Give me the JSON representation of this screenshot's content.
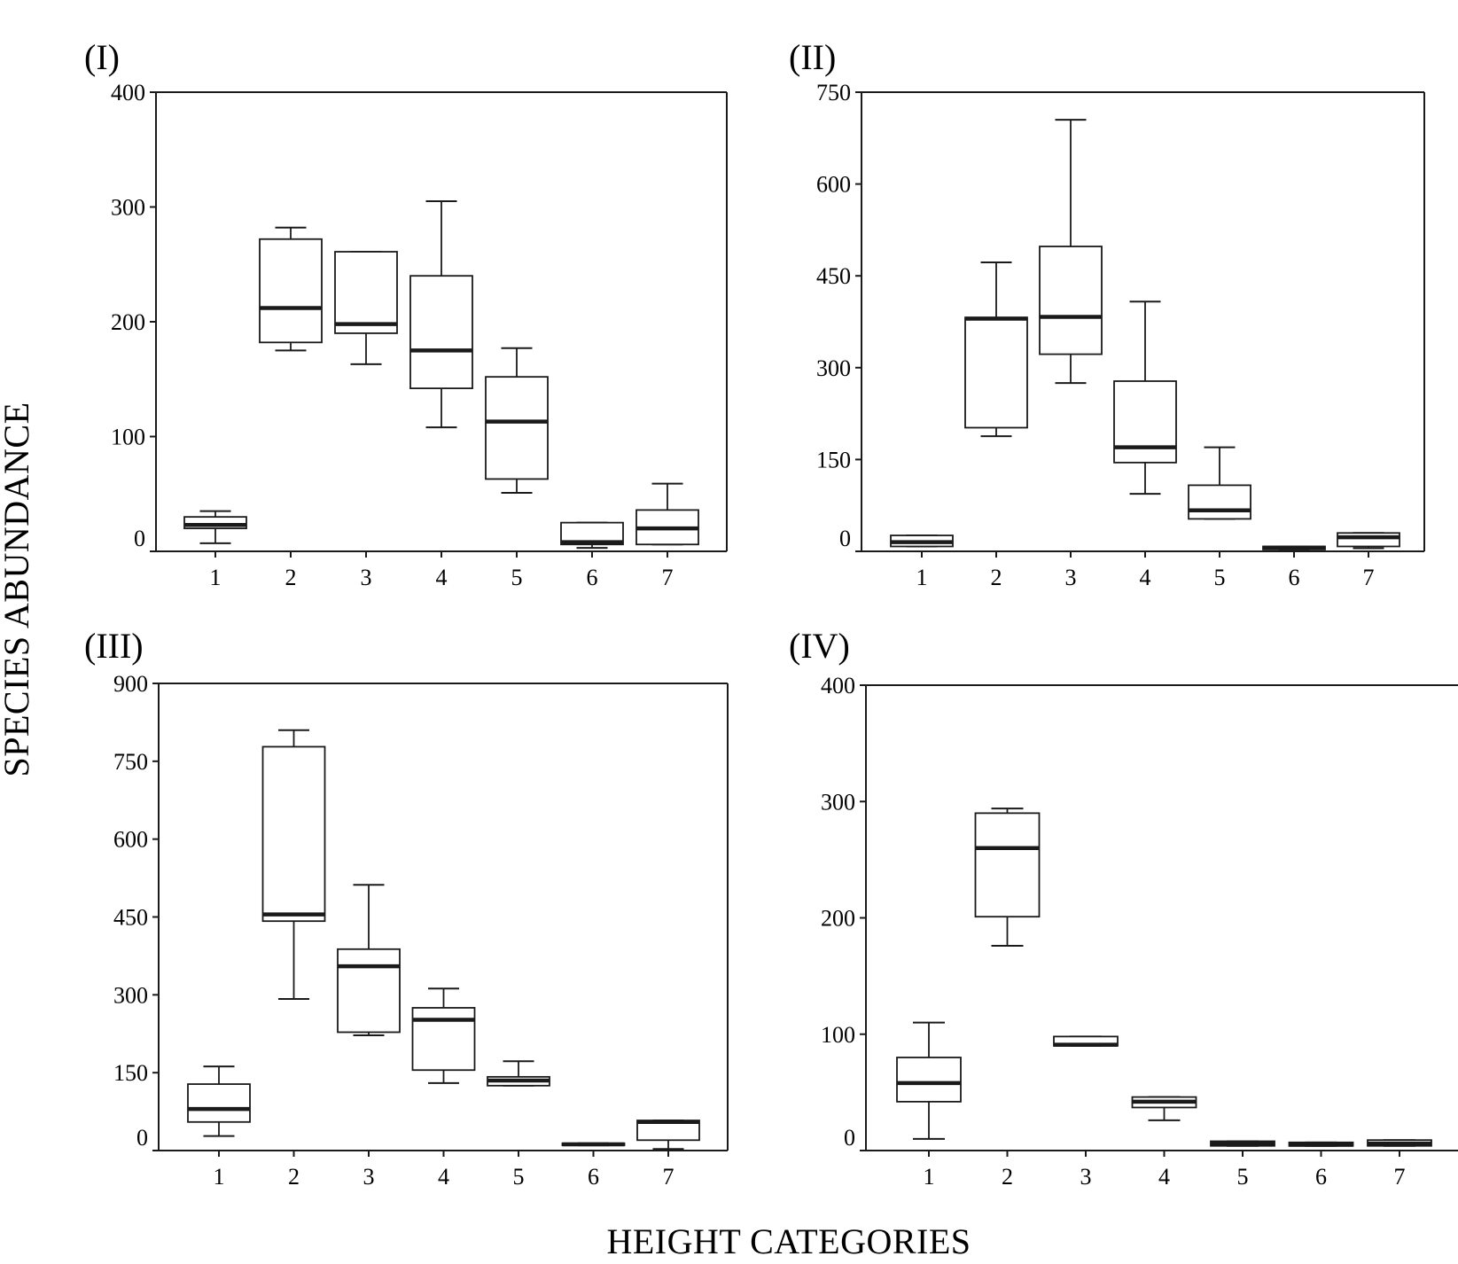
{
  "figure": {
    "ylabel": "SPECIES ABUNDANCE",
    "xlabel": "HEIGHT CATEGORIES"
  },
  "chart_data": [
    {
      "type": "box",
      "panel": "(I)",
      "categories": [
        "1",
        "2",
        "3",
        "4",
        "5",
        "6",
        "7"
      ],
      "ylim": [
        0,
        400
      ],
      "yticks": [
        0,
        100,
        200,
        300,
        400
      ],
      "boxes": [
        {
          "whislo": 7,
          "q1": 20,
          "med": 23,
          "q3": 30,
          "whishi": 35
        },
        {
          "whislo": 175,
          "q1": 182,
          "med": 212,
          "q3": 272,
          "whishi": 282
        },
        {
          "whislo": 163,
          "q1": 190,
          "med": 198,
          "q3": 261,
          "whishi": 261
        },
        {
          "whislo": 108,
          "q1": 142,
          "med": 175,
          "q3": 240,
          "whishi": 305
        },
        {
          "whislo": 51,
          "q1": 63,
          "med": 113,
          "q3": 152,
          "whishi": 177
        },
        {
          "whislo": 3,
          "q1": 6,
          "med": 8,
          "q3": 25,
          "whishi": 25
        },
        {
          "whislo": 6,
          "q1": 6,
          "med": 20,
          "q3": 36,
          "whishi": 59
        }
      ]
    },
    {
      "type": "box",
      "panel": "(II)",
      "categories": [
        "1",
        "2",
        "3",
        "4",
        "5",
        "6",
        "7"
      ],
      "ylim": [
        0,
        750
      ],
      "yticks": [
        0,
        150,
        300,
        450,
        600,
        750
      ],
      "boxes": [
        {
          "whislo": 8,
          "q1": 8,
          "med": 15,
          "q3": 26,
          "whishi": 26
        },
        {
          "whislo": 188,
          "q1": 202,
          "med": 380,
          "q3": 382,
          "whishi": 472
        },
        {
          "whislo": 275,
          "q1": 322,
          "med": 383,
          "q3": 498,
          "whishi": 705
        },
        {
          "whislo": 94,
          "q1": 145,
          "med": 170,
          "q3": 278,
          "whishi": 408
        },
        {
          "whislo": 53,
          "q1": 53,
          "med": 67,
          "q3": 108,
          "whishi": 170
        },
        {
          "whislo": 3,
          "q1": 3,
          "med": 6,
          "q3": 8,
          "whishi": 8
        },
        {
          "whislo": 5,
          "q1": 8,
          "med": 23,
          "q3": 30,
          "whishi": 30
        }
      ]
    },
    {
      "type": "box",
      "panel": "(III)",
      "categories": [
        "1",
        "2",
        "3",
        "4",
        "5",
        "6",
        "7"
      ],
      "ylim": [
        0,
        900
      ],
      "yticks": [
        0,
        150,
        300,
        450,
        600,
        750,
        900
      ],
      "boxes": [
        {
          "whislo": 28,
          "q1": 55,
          "med": 80,
          "q3": 128,
          "whishi": 162
        },
        {
          "whislo": 292,
          "q1": 442,
          "med": 455,
          "q3": 778,
          "whishi": 810
        },
        {
          "whislo": 222,
          "q1": 228,
          "med": 355,
          "q3": 388,
          "whishi": 512
        },
        {
          "whislo": 130,
          "q1": 155,
          "med": 252,
          "q3": 275,
          "whishi": 312
        },
        {
          "whislo": 125,
          "q1": 125,
          "med": 135,
          "q3": 142,
          "whishi": 172
        },
        {
          "whislo": 10,
          "q1": 10,
          "med": 12,
          "q3": 14,
          "whishi": 14
        },
        {
          "whislo": 3,
          "q1": 20,
          "med": 55,
          "q3": 58,
          "whishi": 58
        }
      ]
    },
    {
      "type": "box",
      "panel": "(IV)",
      "categories": [
        "1",
        "2",
        "3",
        "4",
        "5",
        "6",
        "7"
      ],
      "ylim": [
        0,
        400
      ],
      "yticks": [
        0,
        100,
        200,
        300,
        400
      ],
      "boxes": [
        {
          "whislo": 10,
          "q1": 42,
          "med": 58,
          "q3": 80,
          "whishi": 110
        },
        {
          "whislo": 176,
          "q1": 201,
          "med": 260,
          "q3": 290,
          "whishi": 294
        },
        {
          "whislo": 90,
          "q1": 90,
          "med": 91,
          "q3": 98,
          "whishi": 98
        },
        {
          "whislo": 26,
          "q1": 37,
          "med": 42,
          "q3": 46,
          "whishi": 46
        },
        {
          "whislo": 4,
          "q1": 4,
          "med": 6,
          "q3": 8,
          "whishi": 8
        },
        {
          "whislo": 4,
          "q1": 4,
          "med": 5,
          "q3": 7,
          "whishi": 7
        },
        {
          "whislo": 4,
          "q1": 4,
          "med": 6,
          "q3": 9,
          "whishi": 9
        }
      ]
    }
  ]
}
